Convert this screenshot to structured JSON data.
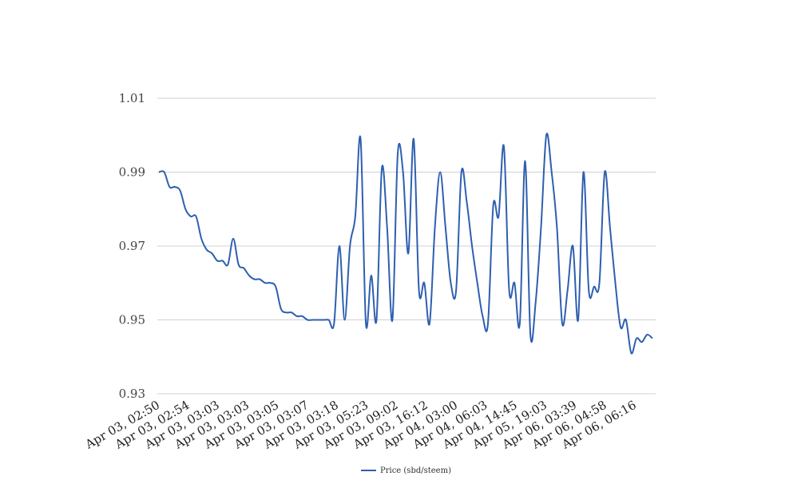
{
  "chart_data": {
    "type": "line",
    "title": "",
    "xlabel": "",
    "ylabel": "",
    "ylim": [
      0.93,
      1.01
    ],
    "yticks": [
      "0.93",
      "0.95",
      "0.97",
      "0.99",
      "1.01"
    ],
    "grid": true,
    "legend": "bottom-center",
    "color": "#2e5fb0",
    "x_tick_labels": [
      "Apr 03, 02:50",
      "Apr 03, 02:54",
      "Apr 03, 03:03",
      "Apr 03, 03:03",
      "Apr 03, 03:05",
      "Apr 03, 03:07",
      "Apr 03, 03:18",
      "Apr 03, 05:23",
      "Apr 03, 09:02",
      "Apr 03, 16:12",
      "Apr 04, 03:00",
      "Apr 04, 06:03",
      "Apr 04, 14:45",
      "Apr 05, 19:03",
      "Apr 06, 03:39",
      "Apr 06, 04:58",
      "Apr 06, 06:16"
    ],
    "series": [
      {
        "name": "Price (sbd/steem)",
        "values": [
          0.99,
          0.99,
          0.986,
          0.986,
          0.985,
          0.98,
          0.978,
          0.978,
          0.972,
          0.969,
          0.968,
          0.966,
          0.966,
          0.965,
          0.972,
          0.965,
          0.964,
          0.962,
          0.961,
          0.961,
          0.96,
          0.96,
          0.959,
          0.953,
          0.952,
          0.952,
          0.951,
          0.951,
          0.95,
          0.95,
          0.95,
          0.95,
          0.95,
          0.949,
          0.97,
          0.95,
          0.97,
          0.978,
          0.999,
          0.949,
          0.962,
          0.95,
          0.991,
          0.975,
          0.95,
          0.995,
          0.99,
          0.968,
          0.999,
          0.958,
          0.96,
          0.949,
          0.975,
          0.99,
          0.975,
          0.96,
          0.958,
          0.99,
          0.982,
          0.97,
          0.96,
          0.951,
          0.949,
          0.981,
          0.978,
          0.997,
          0.958,
          0.96,
          0.949,
          0.993,
          0.946,
          0.955,
          0.975,
          1.0,
          0.99,
          0.975,
          0.949,
          0.958,
          0.97,
          0.95,
          0.99,
          0.958,
          0.959,
          0.96,
          0.99,
          0.975,
          0.96,
          0.948,
          0.95,
          0.941,
          0.945,
          0.944,
          0.946,
          0.945
        ]
      }
    ]
  }
}
